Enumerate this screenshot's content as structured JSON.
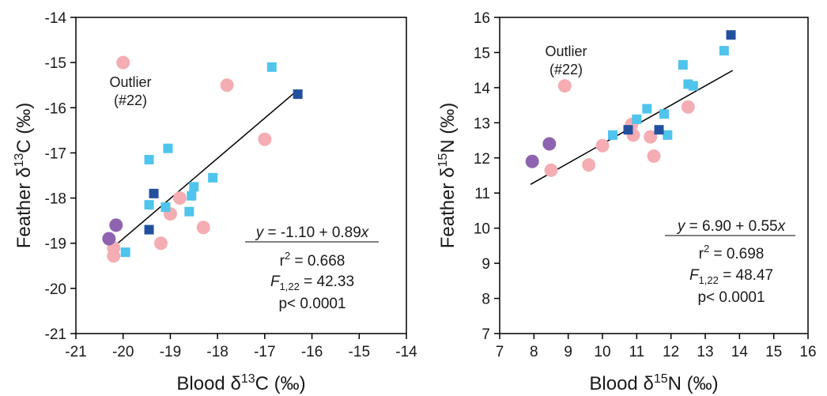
{
  "colors": {
    "pink": "#f4adb3",
    "light_blue": "#4fc4ec",
    "dark_blue": "#23509e",
    "purple": "#8e64b0",
    "line": "#000000"
  },
  "chart_data": [
    {
      "type": "scatter",
      "xlabel": {
        "main": "Blood ",
        "delta": "δ",
        "sup": "13",
        "rest": "C (‰)"
      },
      "ylabel": {
        "main": "Feather ",
        "delta": "δ",
        "sup": "13",
        "rest": "C (‰)"
      },
      "xlim": [
        -21,
        -14
      ],
      "ylim": [
        -21,
        -14
      ],
      "xticks": [
        "-21",
        "-20",
        "-19",
        "-18",
        "-17",
        "-16",
        "-15",
        "-14"
      ],
      "yticks": [
        "-21",
        "-20",
        "-19",
        "-18",
        "-17",
        "-16",
        "-15",
        "-14"
      ],
      "outlier_label": {
        "line1": "Outlier",
        "line2": "(#22)"
      },
      "equation": "y = -1.10 + 0.89x",
      "stats": {
        "r2_base": "r",
        "r2_sup": "2",
        "r2_rest": " = 0.668",
        "f_base": "F",
        "f_sub": "1,22",
        "f_rest": " = 42.33",
        "p": "p< 0.0001"
      },
      "fit_line": {
        "intercept": -1.1,
        "slope": 0.89,
        "x_range": [
          -20.2,
          -16.3
        ]
      },
      "series": [
        {
          "color_key": "pink",
          "marker": "circle",
          "points": [
            [
              -20.0,
              -15.0
            ],
            [
              -17.8,
              -15.5
            ],
            [
              -17.0,
              -16.7
            ],
            [
              -18.8,
              -18.0
            ],
            [
              -19.0,
              -18.35
            ],
            [
              -18.3,
              -18.65
            ],
            [
              -19.2,
              -19.0
            ],
            [
              -20.2,
              -19.1
            ],
            [
              -20.2,
              -19.28
            ]
          ]
        },
        {
          "color_key": "light_blue",
          "marker": "square",
          "points": [
            [
              -16.85,
              -15.1
            ],
            [
              -19.05,
              -16.9
            ],
            [
              -19.45,
              -17.15
            ],
            [
              -18.1,
              -17.55
            ],
            [
              -18.5,
              -17.75
            ],
            [
              -18.55,
              -17.95
            ],
            [
              -19.1,
              -18.2
            ],
            [
              -19.45,
              -18.15
            ],
            [
              -18.6,
              -18.3
            ],
            [
              -19.95,
              -19.2
            ]
          ]
        },
        {
          "color_key": "dark_blue",
          "marker": "square",
          "points": [
            [
              -16.3,
              -15.7
            ],
            [
              -19.35,
              -17.9
            ],
            [
              -19.45,
              -18.7
            ]
          ]
        },
        {
          "color_key": "purple",
          "marker": "circle",
          "points": [
            [
              -20.15,
              -18.6
            ],
            [
              -20.3,
              -18.9
            ]
          ]
        }
      ]
    },
    {
      "type": "scatter",
      "xlabel": {
        "main": "Blood ",
        "delta": "δ",
        "sup": "15",
        "rest": "N (‰)"
      },
      "ylabel": {
        "main": "Feather ",
        "delta": "δ",
        "sup": "15",
        "rest": "N (‰)"
      },
      "xlim": [
        7,
        16
      ],
      "ylim": [
        7,
        16
      ],
      "xticks": [
        "7",
        "8",
        "9",
        "10",
        "11",
        "12",
        "13",
        "14",
        "15",
        "16"
      ],
      "yticks": [
        "7",
        "8",
        "9",
        "10",
        "11",
        "12",
        "13",
        "14",
        "15",
        "16"
      ],
      "outlier_label": {
        "line1": "Outlier",
        "line2": "(#22)"
      },
      "equation": "y = 6.90 + 0.55x",
      "stats": {
        "r2_base": "r",
        "r2_sup": "2",
        "r2_rest": " = 0.698",
        "f_base": "F",
        "f_sub": "1,22",
        "f_rest": " = 48.47",
        "p": "p< 0.0001"
      },
      "fit_line": {
        "intercept": 6.9,
        "slope": 0.55,
        "x_range": [
          7.9,
          13.8
        ]
      },
      "series": [
        {
          "color_key": "pink",
          "marker": "circle",
          "points": [
            [
              8.9,
              14.05
            ],
            [
              10.85,
              12.95
            ],
            [
              10.9,
              12.65
            ],
            [
              11.4,
              12.6
            ],
            [
              12.5,
              13.45
            ],
            [
              10.0,
              12.35
            ],
            [
              11.5,
              12.05
            ],
            [
              9.6,
              11.8
            ],
            [
              8.5,
              11.65
            ]
          ]
        },
        {
          "color_key": "light_blue",
          "marker": "square",
          "points": [
            [
              12.35,
              14.65
            ],
            [
              12.5,
              14.1
            ],
            [
              12.65,
              14.05
            ],
            [
              13.55,
              15.05
            ],
            [
              11.3,
              13.4
            ],
            [
              11.8,
              13.25
            ],
            [
              11.0,
              13.1
            ],
            [
              10.3,
              12.65
            ],
            [
              11.9,
              12.65
            ]
          ]
        },
        {
          "color_key": "dark_blue",
          "marker": "square",
          "points": [
            [
              13.75,
              15.5
            ],
            [
              10.75,
              12.8
            ],
            [
              11.65,
              12.8
            ]
          ]
        },
        {
          "color_key": "purple",
          "marker": "circle",
          "points": [
            [
              8.45,
              12.4
            ],
            [
              7.95,
              11.9
            ]
          ]
        }
      ]
    }
  ]
}
